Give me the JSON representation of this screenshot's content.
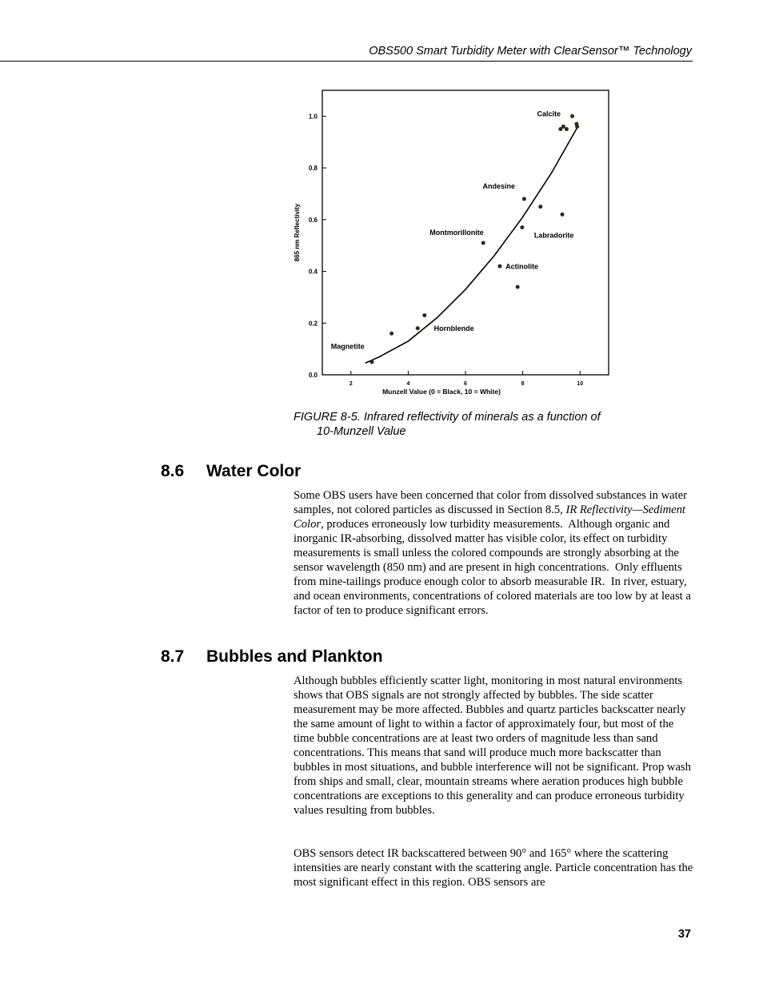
{
  "header": {
    "title": "OBS500 Smart Turbidity Meter with ClearSensor™ Technology"
  },
  "figure": {
    "caption_line1": "FIGURE 8-5.  Infrared reflectivity of minerals as a function of",
    "caption_line2": "10-Munzell Value"
  },
  "chart_data": {
    "type": "scatter",
    "xlabel": "Munzell Value (0 = Black, 10 = White)",
    "ylabel": "865 nm Reflectivity",
    "xlim": [
      1,
      11
    ],
    "ylim": [
      0,
      1.1
    ],
    "xticks": [
      2,
      4,
      6,
      8,
      10
    ],
    "yticks": [
      "0.0",
      "0.2",
      "0.4",
      "0.6",
      "0.8",
      "1.0"
    ],
    "grid": false,
    "points": [
      [
        2.73,
        0.05
      ],
      [
        3.42,
        0.16
      ],
      [
        4.33,
        0.18
      ],
      [
        4.57,
        0.23
      ],
      [
        6.62,
        0.51
      ],
      [
        7.2,
        0.42
      ],
      [
        7.82,
        0.34
      ],
      [
        7.98,
        0.57
      ],
      [
        8.05,
        0.68
      ],
      [
        8.62,
        0.65
      ],
      [
        9.38,
        0.62
      ],
      [
        9.32,
        0.95
      ],
      [
        9.42,
        0.96
      ],
      [
        9.53,
        0.95
      ],
      [
        9.73,
        1.0
      ],
      [
        9.88,
        0.97
      ],
      [
        9.9,
        0.96
      ]
    ],
    "fit_curve": [
      [
        2.5,
        0.045
      ],
      [
        3,
        0.07
      ],
      [
        4,
        0.13
      ],
      [
        5,
        0.22
      ],
      [
        6,
        0.33
      ],
      [
        7,
        0.46
      ],
      [
        8,
        0.61
      ],
      [
        9,
        0.78
      ],
      [
        9.9,
        0.955
      ]
    ],
    "annotations": [
      {
        "text": "Calcite",
        "x": 8.5,
        "y": 1.0
      },
      {
        "text": "Andesine",
        "x": 6.6,
        "y": 0.72
      },
      {
        "text": "Montmorillonite",
        "x": 4.75,
        "y": 0.54
      },
      {
        "text": "Labradorite",
        "x": 8.4,
        "y": 0.53
      },
      {
        "text": "Actinolite",
        "x": 7.4,
        "y": 0.41
      },
      {
        "text": "Hornblende",
        "x": 4.9,
        "y": 0.17
      },
      {
        "text": "Magnetite",
        "x": 1.3,
        "y": 0.1
      }
    ]
  },
  "sections": [
    {
      "number": "8.6",
      "title": "Water Color",
      "para_html": "Some OBS users have been concerned that color from dissolved substances in water samples, not colored particles as discussed in Section 8.5, <i>IR Reflectivity—Sediment Color</i>, produces erroneously low turbidity measurements.&nbsp; Although organic and inorganic IR-absorbing, dissolved matter has visible color, its effect on turbidity measurements is small unless the colored compounds are strongly absorbing at the sensor wavelength (850 nm) and are present in high concentrations.&nbsp; Only effluents from mine-tailings produce enough color to absorb measurable IR.&nbsp; In river, estuary, and ocean environments, concentrations of colored materials are too low by at least a factor of ten to produce significant errors."
    },
    {
      "number": "8.7",
      "title": "Bubbles and Plankton",
      "para1": "Although bubbles efficiently scatter light, monitoring in most natural environments shows that OBS signals are not strongly affected by bubbles. The side scatter measurement may be more affected.  Bubbles and quartz particles backscatter nearly the same amount of light to within a factor of approximately four, but most of the time bubble concentrations are at least two orders of magnitude less than sand concentrations.  This means that sand will produce much more backscatter than bubbles in most situations, and bubble interference will not be significant.  Prop wash from ships and small, clear, mountain streams where aeration produces high bubble concentrations are exceptions to this generality and can produce erroneous turbidity values resulting from bubbles.",
      "para2": "OBS sensors detect IR backscattered between 90° and 165° where the scattering intensities are nearly constant with the scattering angle.  Particle concentration has the most significant effect in this region.  OBS sensors are"
    }
  ],
  "page_number": "37"
}
